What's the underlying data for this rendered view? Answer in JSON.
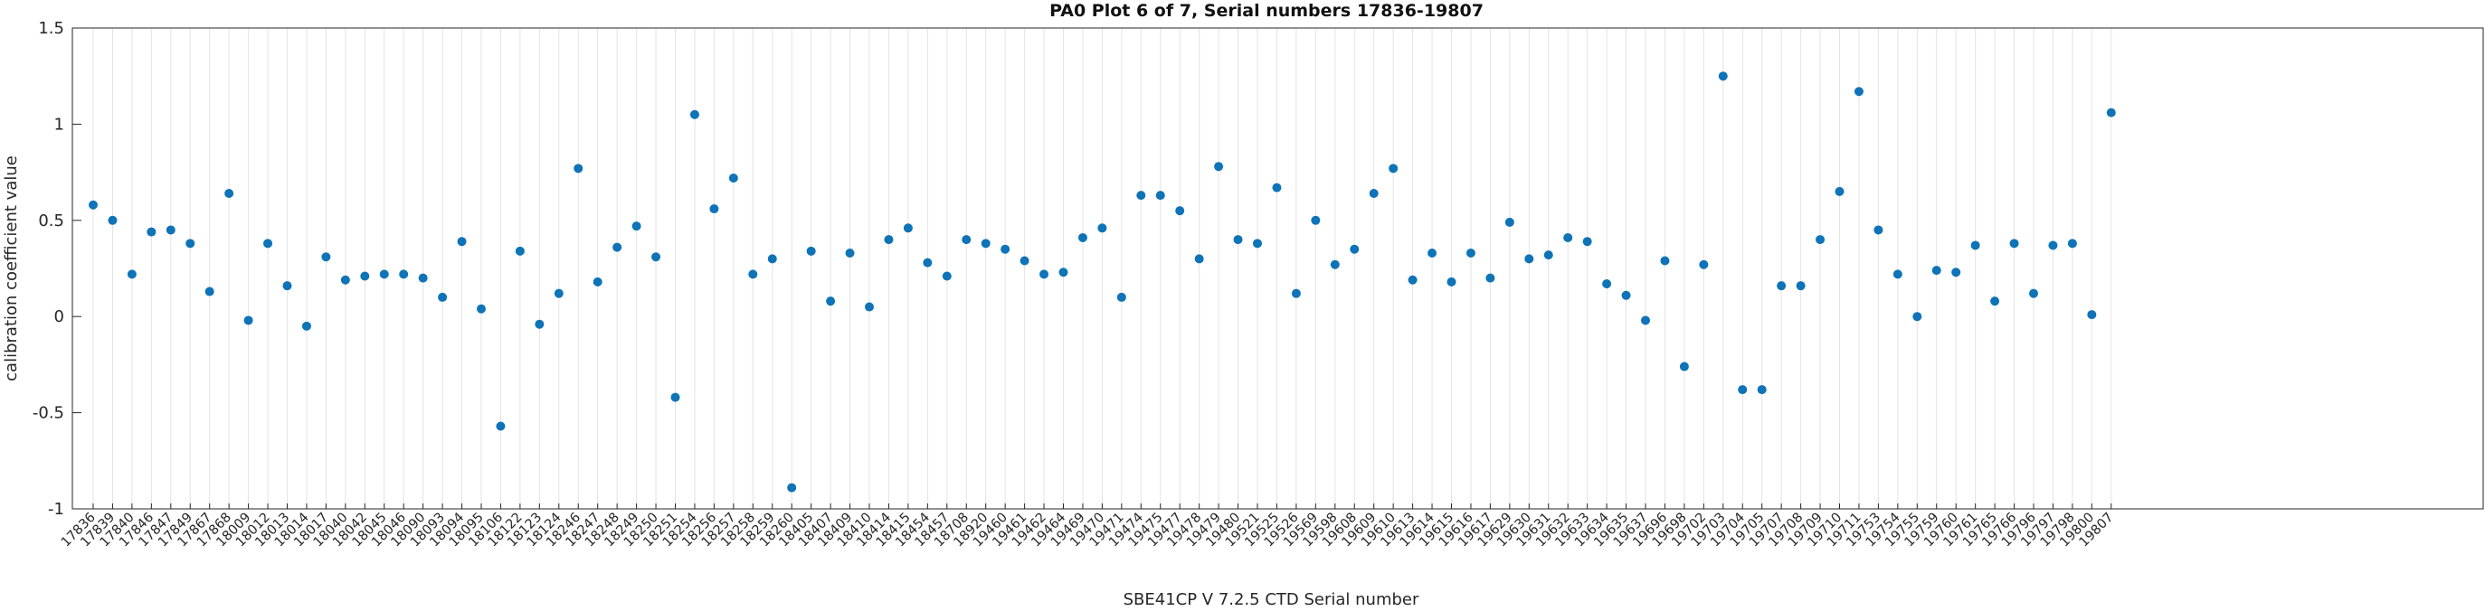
{
  "chart_data": {
    "type": "scatter",
    "title": "PA0 Plot 6 of 7, Serial numbers 17836-19807",
    "xlabel": "SBE41CP V 7.2.5 CTD Serial number",
    "ylabel": "calibration coefficient value",
    "legend": "none",
    "grid": "vertical-only",
    "ylim": [
      -1,
      1.5
    ],
    "yticks": [
      1.5,
      1,
      0.5,
      0,
      -0.5,
      -1
    ],
    "ytick_labels": [
      "1.5",
      "1",
      "0.5",
      "0",
      "-0.5",
      "-1"
    ],
    "marker": {
      "shape": "filled-circle",
      "radius": 5,
      "color": "#0e73b7"
    },
    "axis_color": "#262626",
    "grid_color": "#e3e3e3",
    "categories": [
      "17836",
      "17839",
      "17840",
      "17846",
      "17847",
      "17849",
      "17867",
      "17868",
      "18009",
      "18012",
      "18013",
      "18014",
      "18017",
      "18040",
      "18042",
      "18045",
      "18046",
      "18090",
      "18093",
      "18094",
      "18095",
      "18106",
      "18122",
      "18123",
      "18124",
      "18246",
      "18247",
      "18248",
      "18249",
      "18250",
      "18251",
      "18254",
      "18256",
      "18257",
      "18258",
      "18259",
      "18260",
      "18405",
      "18407",
      "18409",
      "18410",
      "18414",
      "18415",
      "18454",
      "18457",
      "18708",
      "18920",
      "19460",
      "19461",
      "19462",
      "19464",
      "19469",
      "19470",
      "19471",
      "19474",
      "19475",
      "19477",
      "19478",
      "19479",
      "19480",
      "19521",
      "19525",
      "19526",
      "19569",
      "19598",
      "19608",
      "19609",
      "19610",
      "19613",
      "19614",
      "19615",
      "19616",
      "19617",
      "19629",
      "19630",
      "19631",
      "19632",
      "19633",
      "19634",
      "19635",
      "19637",
      "19696",
      "19698",
      "19702",
      "19703",
      "19704",
      "19705",
      "19707",
      "19708",
      "19709",
      "19710",
      "19711",
      "19753",
      "19754",
      "19755",
      "19759",
      "19760",
      "19761",
      "19765",
      "19766",
      "19796",
      "19797",
      "19798",
      "19800",
      "19807"
    ],
    "values": [
      0.58,
      0.5,
      0.22,
      0.44,
      0.45,
      0.38,
      0.13,
      0.64,
      -0.02,
      0.38,
      0.16,
      -0.05,
      0.31,
      0.19,
      0.21,
      0.22,
      0.22,
      0.2,
      0.1,
      0.39,
      0.04,
      -0.57,
      0.34,
      -0.04,
      0.12,
      0.77,
      0.18,
      0.36,
      0.47,
      0.31,
      -0.42,
      1.05,
      0.56,
      0.72,
      0.22,
      0.3,
      -0.89,
      0.34,
      0.08,
      0.33,
      0.05,
      0.4,
      0.46,
      0.28,
      0.21,
      0.4,
      0.38,
      0.35,
      0.29,
      0.22,
      0.23,
      0.41,
      0.46,
      0.1,
      0.63,
      0.63,
      0.55,
      0.3,
      0.78,
      0.4,
      0.38,
      0.67,
      0.12,
      0.5,
      0.27,
      0.35,
      0.64,
      0.77,
      0.19,
      0.33,
      0.18,
      0.33,
      0.2,
      0.49,
      0.3,
      0.32,
      0.41,
      0.39,
      0.17,
      0.11,
      -0.02,
      0.29,
      -0.26,
      0.27,
      1.25,
      -0.38,
      -0.38,
      0.16,
      0.16,
      0.4,
      0.65,
      1.17,
      0.45,
      0.22,
      0.0,
      0.24,
      0.23,
      0.37,
      0.08,
      0.38,
      0.12,
      0.37,
      0.38,
      0.01,
      1.06
    ]
  }
}
